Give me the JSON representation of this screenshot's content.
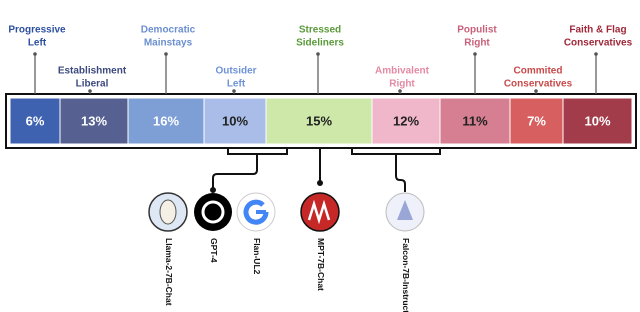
{
  "segments": [
    {
      "label": [
        "Progressive",
        "Left"
      ],
      "share": "6%"
    },
    {
      "label": [
        "Establishment",
        "Liberal"
      ],
      "share": "13%"
    },
    {
      "label": [
        "Democratic",
        "Mainstays"
      ],
      "share": "16%"
    },
    {
      "label": [
        "Outsider",
        "Left"
      ],
      "share": "10%"
    },
    {
      "label": [
        "Stressed",
        "Sideliners"
      ],
      "share": "15%"
    },
    {
      "label": [
        "Ambivalent",
        "Right"
      ],
      "share": "12%"
    },
    {
      "label": [
        "Populist",
        "Right"
      ],
      "share": "11%"
    },
    {
      "label": [
        "Commited",
        "Conservatives"
      ],
      "share": "7%"
    },
    {
      "label": [
        "Faith & Flag",
        "Conservatives"
      ],
      "share": "10%"
    }
  ],
  "models": [
    "Llama-2-7B-Chat",
    "GPT-4",
    "Flan-UL2",
    "MPT-7B-Chat",
    "Falcon-7B-Instruct"
  ]
}
